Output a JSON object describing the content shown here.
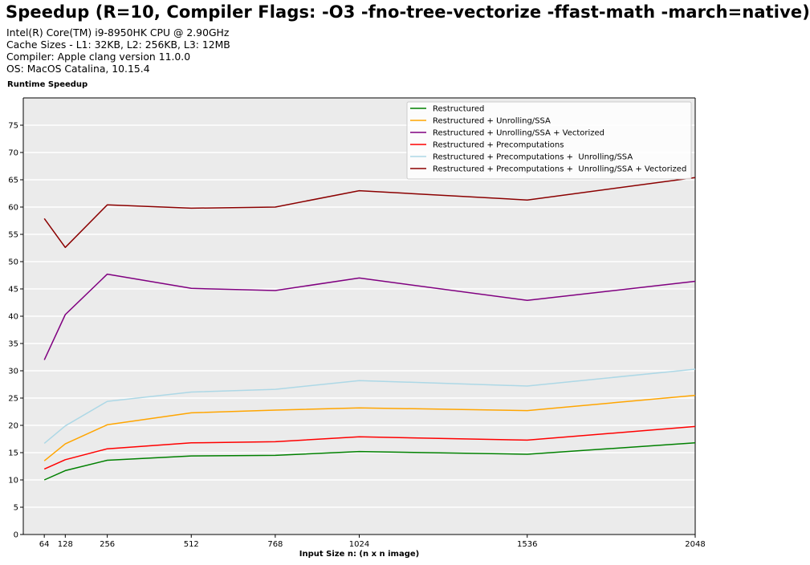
{
  "chart_data": {
    "type": "line",
    "title": "Speedup (R=10, Compiler Flags: -O3 -fno-tree-vectorize -ffast-math -march=native)",
    "subtitle_lines": [
      "Intel(R) Core(TM) i9-8950HK CPU @ 2.90GHz",
      "Cache Sizes - L1: 32KB, L2: 256KB, L3: 12MB",
      "Compiler: Apple clang version 11.0.0",
      "OS: MacOS Catalina, 10.15.4"
    ],
    "ylabel": "Runtime Speedup",
    "xlabel": "Input Size n: (n x n image)",
    "x": [
      64,
      128,
      256,
      512,
      768,
      1024,
      1536,
      2048
    ],
    "xlim": [
      0,
      2048
    ],
    "ylim": [
      0,
      80
    ],
    "xticks": [
      64,
      128,
      256,
      512,
      768,
      1024,
      1536,
      2048
    ],
    "yticks": [
      0,
      5,
      10,
      15,
      20,
      25,
      30,
      35,
      40,
      45,
      50,
      55,
      60,
      65,
      70,
      75
    ],
    "grid": true,
    "legend_position": "top-right",
    "background": "#ebebeb",
    "series": [
      {
        "name": "Restructured",
        "color": "#008000",
        "values": [
          10.0,
          11.7,
          13.6,
          14.4,
          14.5,
          15.2,
          14.7,
          16.8
        ]
      },
      {
        "name": "Restructured + Unrolling/SSA",
        "color": "#ffa500",
        "values": [
          13.5,
          16.6,
          20.1,
          22.3,
          22.8,
          23.2,
          22.7,
          25.5
        ]
      },
      {
        "name": "Restructured + Unrolling/SSA + Vectorized",
        "color": "#800080",
        "values": [
          32.0,
          40.3,
          47.7,
          45.1,
          44.7,
          47.0,
          42.9,
          46.4
        ]
      },
      {
        "name": "Restructured + Precomputations",
        "color": "#ff0000",
        "values": [
          12.0,
          13.7,
          15.7,
          16.8,
          17.0,
          17.9,
          17.3,
          19.8
        ]
      },
      {
        "name": "Restructured + Precomputations +  Unrolling/SSA",
        "color": "#add8e6",
        "values": [
          16.7,
          19.9,
          24.4,
          26.1,
          26.6,
          28.2,
          27.2,
          30.3
        ]
      },
      {
        "name": "Restructured + Precomputations +  Unrolling/SSA + Vectorized",
        "color": "#8b0000",
        "values": [
          57.9,
          52.6,
          60.4,
          59.8,
          60.0,
          63.0,
          61.3,
          65.4
        ]
      }
    ]
  }
}
